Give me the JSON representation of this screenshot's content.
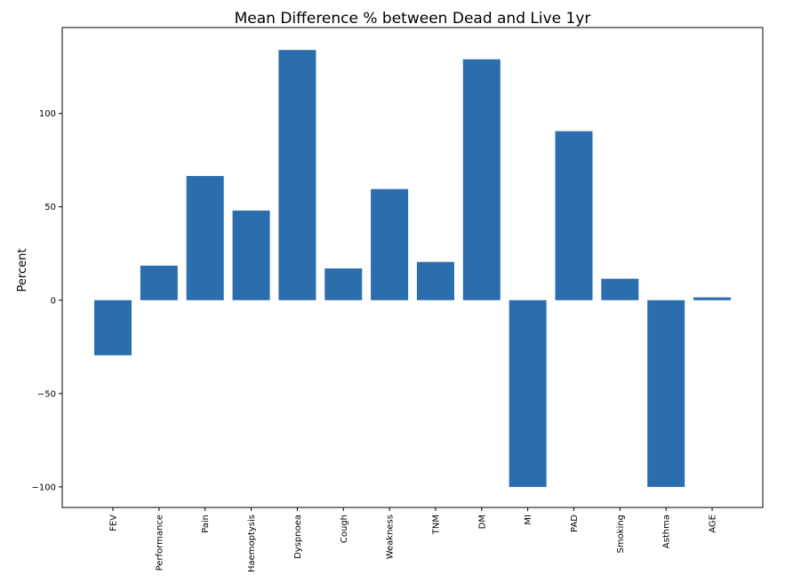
{
  "chart_data": {
    "type": "bar",
    "title": "Mean Difference % between Dead and Live 1yr",
    "ylabel": "Percent",
    "xlabel": "",
    "categories": [
      "FEV",
      "Performance",
      "Pain",
      "Haemoptysis",
      "Dyspnoea",
      "Cough",
      "Weakness",
      "TNM",
      "DM",
      "MI",
      "PAD",
      "Smoking",
      "Asthma",
      "AGE"
    ],
    "values": [
      -29.5,
      18.5,
      66.5,
      48,
      134,
      17,
      59.5,
      20.5,
      129,
      -100,
      90.5,
      11.5,
      -100,
      1.5
    ],
    "ylim": [
      -111,
      146
    ],
    "yticks": [
      -100,
      -50,
      0,
      50,
      100
    ],
    "ytick_labels": [
      "−100",
      "−50",
      "0",
      "50",
      "100"
    ],
    "grid": false,
    "bar_color": "#2b6ead"
  }
}
